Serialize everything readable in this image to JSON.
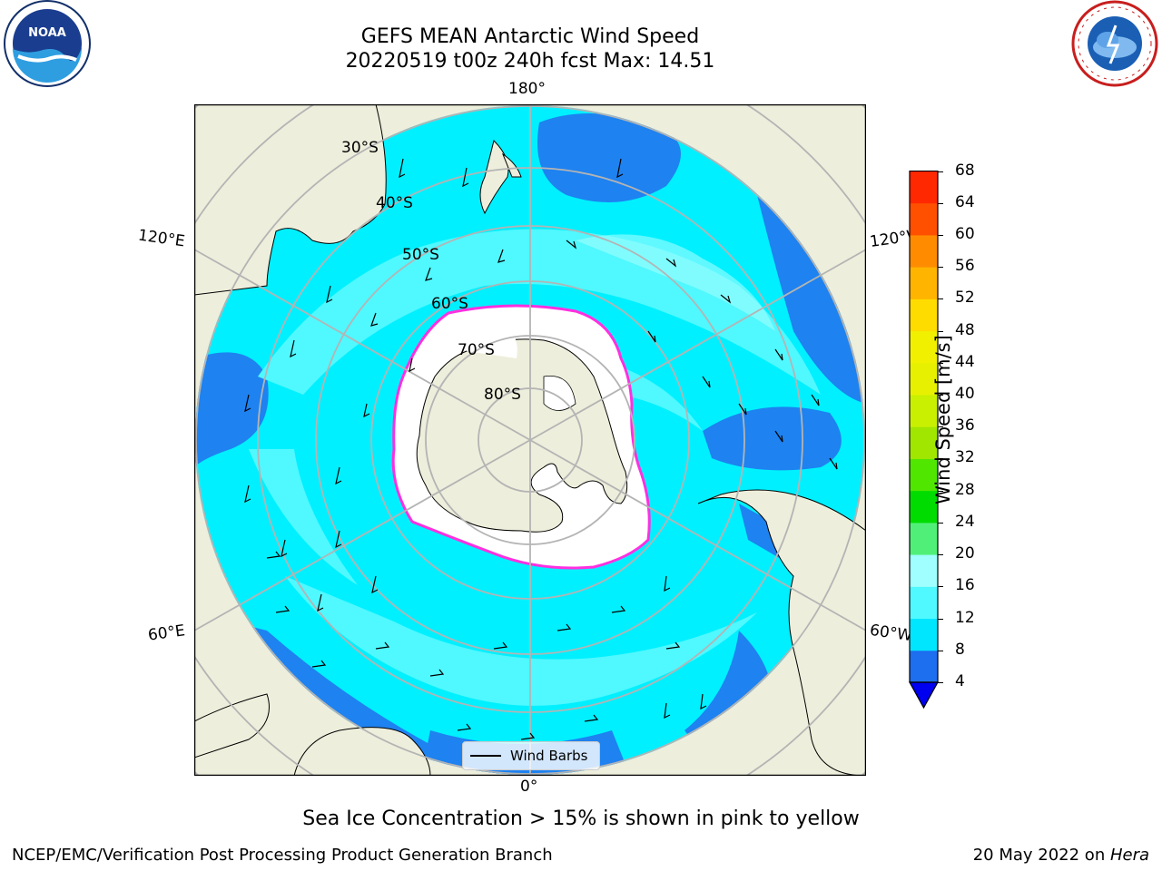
{
  "header": {
    "title_line1": "GEFS MEAN Antarctic Wind Speed",
    "title_line2": "20220519 t00z 240h fcst   Max: 14.51"
  },
  "logos": {
    "left": "NOAA",
    "left_ring_text": "NATIONAL OCEANIC AND ATMOSPHERIC ADMINISTRATION · U.S. DEPARTMENT OF COMMERCE",
    "right_ring_text": "NATIONAL WEATHER SERVICE"
  },
  "map": {
    "projection": "south-polar-stereographic",
    "longitude_labels": [
      "180°",
      "120°E",
      "120°W",
      "60°E",
      "60°W",
      "0°"
    ],
    "latitude_labels": [
      "30°S",
      "40°S",
      "50°S",
      "60°S",
      "70°S",
      "80°S"
    ],
    "legend_label": "Wind Barbs",
    "colors": {
      "land": "#eeeedc",
      "ocean_4_8": "#1e82f0",
      "ocean_8_12": "#00f0ff",
      "ocean_12_16": "#50f8ff",
      "sea_ice": "#ffffff",
      "sea_ice_edge": "#ff30e0"
    }
  },
  "colorbar": {
    "label": "Wind Speed [m/s]",
    "ticks": [
      "4",
      "8",
      "12",
      "16",
      "20",
      "24",
      "28",
      "32",
      "36",
      "40",
      "44",
      "48",
      "52",
      "56",
      "60",
      "64",
      "68"
    ],
    "colors": [
      "#1e6ef0",
      "#00e6ff",
      "#50f8ff",
      "#a0ffff",
      "#50f078",
      "#00dc00",
      "#50e600",
      "#a0e600",
      "#c8f000",
      "#e6f000",
      "#f0f000",
      "#ffdc00",
      "#ffb400",
      "#ff8c00",
      "#ff5000",
      "#ff2800",
      "#ff0000"
    ],
    "extend_min_color": "#0000f0"
  },
  "footer": {
    "note": "Sea Ice Concentration > 15% is shown in pink to yellow",
    "branch": "NCEP/EMC/Verification Post Processing Product Generation Branch",
    "date": "20 May 2022 on ",
    "machine": "Hera"
  }
}
